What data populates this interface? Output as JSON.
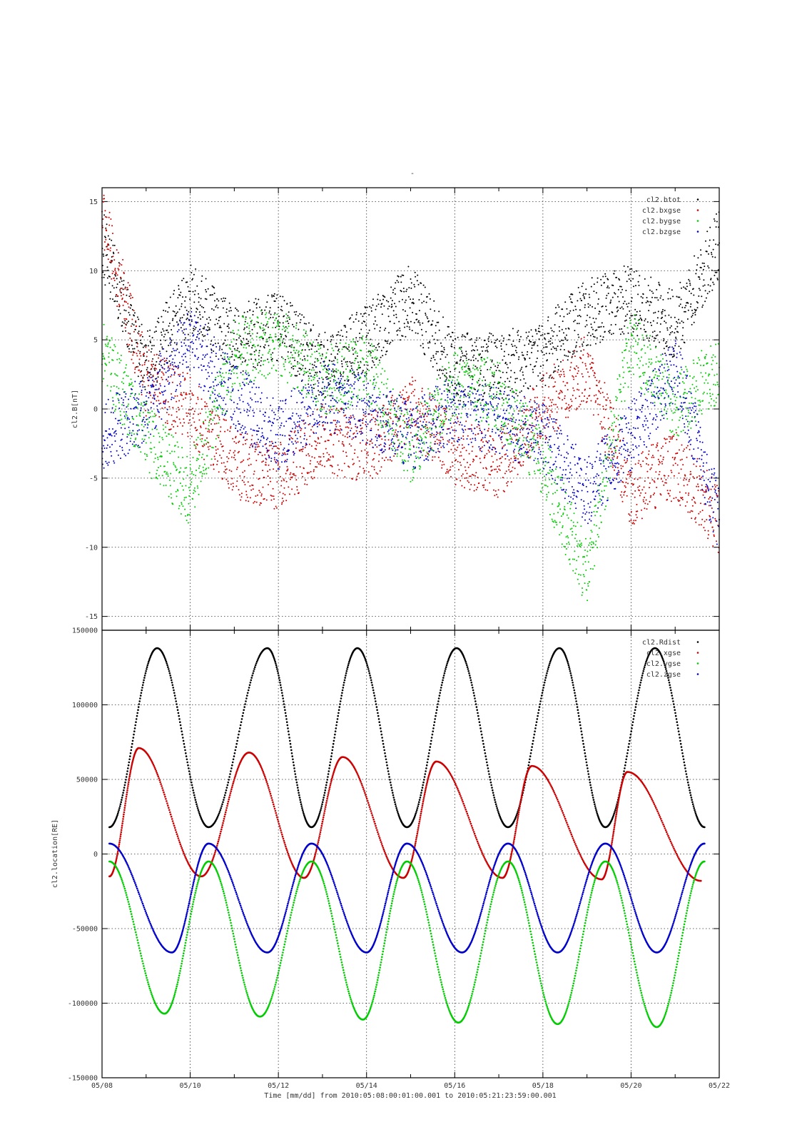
{
  "chart_data": [
    {
      "type": "scatter",
      "title": "-",
      "ylabel": "cl2.B[nT]",
      "xlim": [
        "05/08",
        "05/22"
      ],
      "ylim": [
        -16,
        16
      ],
      "y_ticks": [
        "15",
        "10",
        "5",
        "0",
        "-5",
        "-10",
        "-15"
      ],
      "legend_position": "top-right",
      "grid": true,
      "series": [
        {
          "name": "cl2.btot",
          "color": "#000000",
          "x": [
            "05/08",
            "05/09",
            "05/10",
            "05/11",
            "05/12",
            "05/13",
            "05/14",
            "05/15",
            "05/16",
            "05/17",
            "05/18",
            "05/19",
            "05/20",
            "05/21",
            "05/22"
          ],
          "values": [
            12,
            3,
            8,
            5,
            6,
            3,
            5,
            8,
            3,
            3,
            4,
            7,
            8,
            6,
            12
          ]
        },
        {
          "name": "cl2.bxgse",
          "color": "#cc0000",
          "x": [
            "05/08",
            "05/09",
            "05/10",
            "05/11",
            "05/12",
            "05/13",
            "05/14",
            "05/15",
            "05/16",
            "05/17",
            "05/18",
            "05/19",
            "05/20",
            "05/21",
            "05/22"
          ],
          "values": [
            14,
            2,
            0,
            -4,
            -5,
            -2,
            -3,
            0,
            -3,
            -4,
            0,
            3,
            -6,
            -4,
            -8
          ]
        },
        {
          "name": "cl2.bygse",
          "color": "#00cc00",
          "x": [
            "05/08",
            "05/09",
            "05/10",
            "05/11",
            "05/12",
            "05/13",
            "05/14",
            "05/15",
            "05/16",
            "05/17",
            "05/18",
            "05/19",
            "05/20",
            "05/21",
            "05/22"
          ],
          "values": [
            4,
            -2,
            -6,
            4,
            5,
            2,
            3,
            -3,
            2,
            1,
            -4,
            -12,
            5,
            0,
            3
          ]
        },
        {
          "name": "cl2.bzgse",
          "color": "#0000cc",
          "x": [
            "05/08",
            "05/09",
            "05/10",
            "05/11",
            "05/12",
            "05/13",
            "05/14",
            "05/15",
            "05/16",
            "05/17",
            "05/18",
            "05/19",
            "05/20",
            "05/21",
            "05/22"
          ],
          "values": [
            -2,
            0,
            5,
            1,
            -2,
            1,
            0,
            -2,
            0,
            -1,
            -2,
            -6,
            -2,
            3,
            -8
          ]
        }
      ]
    },
    {
      "type": "scatter",
      "ylabel": "cl2.location[RE]",
      "xlabel": "Time [mm/dd]  from 2010:05:08:00:01:00.001  to  2010:05:21:23:59:00.001",
      "x_ticks": [
        "05/08",
        "05/10",
        "05/12",
        "05/14",
        "05/16",
        "05/18",
        "05/20",
        "05/22"
      ],
      "xlim": [
        "05/08",
        "05/22"
      ],
      "ylim": [
        -150000,
        150000
      ],
      "y_ticks": [
        "150000",
        "100000",
        "50000",
        "0",
        "-50000",
        "-100000",
        "-150000"
      ],
      "legend_position": "top-right",
      "grid": true,
      "series": [
        {
          "name": "cl2.Rdist",
          "color": "#000000",
          "x": [
            "05/08 04:00",
            "05/09 06:00",
            "05/10 10:00",
            "05/11 18:00",
            "05/12 18:00",
            "05/13 19:00",
            "05/14 22:00",
            "05/16 01:00",
            "05/17 05:00",
            "05/18 09:00",
            "05/19 10:00",
            "05/20 13:00",
            "05/21 16:00"
          ],
          "values": [
            18000,
            138000,
            18000,
            138000,
            18000,
            138000,
            18000,
            138000,
            18000,
            138000,
            18000,
            138000,
            18000
          ]
        },
        {
          "name": "cl2.xgse",
          "color": "#cc0000",
          "x": [
            "05/08 04:00",
            "05/08 20:00",
            "05/10 06:00",
            "05/11 08:00",
            "05/12 14:00",
            "05/13 11:00",
            "05/14 20:00",
            "05/15 14:00",
            "05/17 02:00",
            "05/17 18:00",
            "05/19 08:00",
            "05/19 22:00",
            "05/21 14:00"
          ],
          "values": [
            -15000,
            71000,
            -15000,
            68000,
            -16000,
            65000,
            -16000,
            62000,
            -16000,
            59000,
            -17000,
            55000,
            -18000
          ]
        },
        {
          "name": "cl2.ygse",
          "color": "#00cc00",
          "x": [
            "05/08 04:00",
            "05/09 10:00",
            "05/10 10:00",
            "05/11 14:00",
            "05/12 18:00",
            "05/13 22:00",
            "05/14 22:00",
            "05/16 02:00",
            "05/17 05:00",
            "05/18 08:00",
            "05/19 10:00",
            "05/20 14:00",
            "05/21 16:00"
          ],
          "values": [
            -5000,
            -107000,
            -5000,
            -109000,
            -5000,
            -111000,
            -5000,
            -113000,
            -5000,
            -114000,
            -5000,
            -116000,
            -5000
          ]
        },
        {
          "name": "cl2.zgse",
          "color": "#0000cc",
          "x": [
            "05/08 04:00",
            "05/09 14:00",
            "05/10 10:00",
            "05/11 18:00",
            "05/12 18:00",
            "05/14 00:00",
            "05/14 22:00",
            "05/16 04:00",
            "05/17 05:00",
            "05/18 08:00",
            "05/19 10:00",
            "05/20 14:00",
            "05/21 16:00"
          ],
          "values": [
            7000,
            -66000,
            7000,
            -66000,
            7000,
            -66000,
            7000,
            -66000,
            7000,
            -66000,
            7000,
            -66000,
            7000
          ]
        }
      ]
    }
  ]
}
